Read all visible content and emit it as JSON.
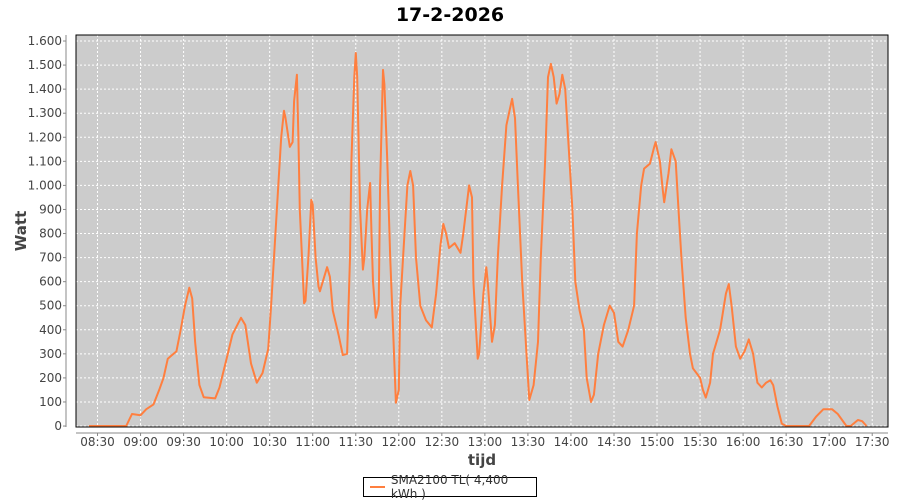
{
  "chart_data": {
    "type": "line",
    "title": "17-2-2026",
    "xlabel": "tijd",
    "ylabel": "Watt",
    "xlim": [
      "08:15",
      "17:41"
    ],
    "ylim": [
      -4,
      1625
    ],
    "grid": true,
    "legend_placement": "bottom",
    "plot_background": "#cccccc",
    "x_ticks": [
      "08:30",
      "09:00",
      "09:30",
      "10:00",
      "10:30",
      "11:00",
      "11:30",
      "12:00",
      "12:30",
      "13:00",
      "13:30",
      "14:00",
      "14:30",
      "15:00",
      "15:30",
      "16:00",
      "16:30",
      "17:00",
      "17:30"
    ],
    "y_ticks": [
      0,
      100,
      200,
      300,
      400,
      500,
      600,
      700,
      800,
      900,
      1000,
      1100,
      1200,
      1300,
      1400,
      1500,
      1600
    ],
    "y_tick_labels": [
      "0",
      "100",
      "200",
      "300",
      "400",
      "500",
      "600",
      "700",
      "800",
      "900",
      "1.000",
      "1.100",
      "1.200",
      "1.300",
      "1.400",
      "1.500",
      "1.600"
    ],
    "series": [
      {
        "name": "SMA2100 TL( 4,400 kWh )",
        "color": "#ff7f3f",
        "points": [
          [
            "08:24",
            0
          ],
          [
            "08:46",
            0
          ],
          [
            "08:50",
            0
          ],
          [
            "08:54",
            50
          ],
          [
            "09:00",
            45
          ],
          [
            "09:04",
            70
          ],
          [
            "09:09",
            90
          ],
          [
            "09:13",
            150
          ],
          [
            "09:16",
            200
          ],
          [
            "09:19",
            280
          ],
          [
            "09:22",
            295
          ],
          [
            "09:25",
            310
          ],
          [
            "09:28",
            400
          ],
          [
            "09:31",
            500
          ],
          [
            "09:34",
            575
          ],
          [
            "09:36",
            530
          ],
          [
            "09:38",
            350
          ],
          [
            "09:41",
            170
          ],
          [
            "09:44",
            120
          ],
          [
            "09:52",
            115
          ],
          [
            "09:55",
            160
          ],
          [
            "10:00",
            280
          ],
          [
            "10:04",
            380
          ],
          [
            "10:10",
            450
          ],
          [
            "10:13",
            420
          ],
          [
            "10:17",
            260
          ],
          [
            "10:21",
            180
          ],
          [
            "10:25",
            220
          ],
          [
            "10:29",
            320
          ],
          [
            "10:31",
            500
          ],
          [
            "10:33",
            700
          ],
          [
            "10:36",
            1000
          ],
          [
            "10:38",
            1200
          ],
          [
            "10:40",
            1310
          ],
          [
            "10:41",
            1280
          ],
          [
            "10:44",
            1160
          ],
          [
            "10:46",
            1180
          ],
          [
            "10:47",
            1350
          ],
          [
            "10:49",
            1460
          ],
          [
            "10:50",
            1200
          ],
          [
            "10:51",
            900
          ],
          [
            "10:54",
            510
          ],
          [
            "10:55",
            520
          ],
          [
            "10:57",
            700
          ],
          [
            "10:59",
            940
          ],
          [
            "11:00",
            920
          ],
          [
            "11:02",
            700
          ],
          [
            "11:04",
            580
          ],
          [
            "11:05",
            560
          ],
          [
            "11:10",
            660
          ],
          [
            "11:12",
            620
          ],
          [
            "11:14",
            480
          ],
          [
            "11:18",
            380
          ],
          [
            "11:21",
            295
          ],
          [
            "11:24",
            300
          ],
          [
            "11:26",
            700
          ],
          [
            "11:27",
            1100
          ],
          [
            "11:29",
            1450
          ],
          [
            "11:30",
            1550
          ],
          [
            "11:31",
            1450
          ],
          [
            "11:33",
            900
          ],
          [
            "11:35",
            650
          ],
          [
            "11:36",
            700
          ],
          [
            "11:38",
            900
          ],
          [
            "11:40",
            1010
          ],
          [
            "11:41",
            800
          ],
          [
            "11:42",
            600
          ],
          [
            "11:44",
            450
          ],
          [
            "11:46",
            500
          ],
          [
            "11:47",
            1000
          ],
          [
            "11:49",
            1480
          ],
          [
            "11:50",
            1420
          ],
          [
            "11:52",
            1100
          ],
          [
            "11:54",
            700
          ],
          [
            "11:56",
            400
          ],
          [
            "11:58",
            97
          ],
          [
            "12:00",
            150
          ],
          [
            "12:01",
            500
          ],
          [
            "12:04",
            800
          ],
          [
            "12:06",
            1000
          ],
          [
            "12:08",
            1060
          ],
          [
            "12:10",
            1000
          ],
          [
            "12:12",
            700
          ],
          [
            "12:15",
            500
          ],
          [
            "12:19",
            440
          ],
          [
            "12:23",
            410
          ],
          [
            "12:26",
            550
          ],
          [
            "12:29",
            750
          ],
          [
            "12:31",
            840
          ],
          [
            "12:33",
            800
          ],
          [
            "12:35",
            740
          ],
          [
            "12:39",
            760
          ],
          [
            "12:43",
            720
          ],
          [
            "12:45",
            800
          ],
          [
            "12:49",
            1000
          ],
          [
            "12:51",
            950
          ],
          [
            "12:52",
            600
          ],
          [
            "12:55",
            280
          ],
          [
            "12:56",
            300
          ],
          [
            "12:59",
            550
          ],
          [
            "13:01",
            660
          ],
          [
            "13:02",
            600
          ],
          [
            "13:05",
            350
          ],
          [
            "13:07",
            420
          ],
          [
            "13:09",
            700
          ],
          [
            "13:12",
            1000
          ],
          [
            "13:15",
            1250
          ],
          [
            "13:19",
            1360
          ],
          [
            "13:21",
            1280
          ],
          [
            "13:23",
            1000
          ],
          [
            "13:26",
            600
          ],
          [
            "13:29",
            300
          ],
          [
            "13:31",
            108
          ],
          [
            "13:34",
            170
          ],
          [
            "13:37",
            350
          ],
          [
            "13:39",
            700
          ],
          [
            "13:42",
            1100
          ],
          [
            "13:44",
            1450
          ],
          [
            "13:46",
            1505
          ],
          [
            "13:48",
            1450
          ],
          [
            "13:50",
            1340
          ],
          [
            "13:52",
            1380
          ],
          [
            "13:54",
            1460
          ],
          [
            "13:56",
            1400
          ],
          [
            "13:58",
            1200
          ],
          [
            "14:01",
            900
          ],
          [
            "14:03",
            600
          ],
          [
            "14:06",
            480
          ],
          [
            "14:09",
            400
          ],
          [
            "14:11",
            200
          ],
          [
            "14:14",
            100
          ],
          [
            "14:16",
            130
          ],
          [
            "14:19",
            300
          ],
          [
            "14:23",
            420
          ],
          [
            "14:27",
            500
          ],
          [
            "14:30",
            470
          ],
          [
            "14:33",
            350
          ],
          [
            "14:36",
            330
          ],
          [
            "14:40",
            400
          ],
          [
            "14:44",
            500
          ],
          [
            "14:46",
            800
          ],
          [
            "14:49",
            1000
          ],
          [
            "14:51",
            1070
          ],
          [
            "14:55",
            1090
          ],
          [
            "14:58",
            1160
          ],
          [
            "14:59",
            1180
          ],
          [
            "15:02",
            1100
          ],
          [
            "15:04",
            980
          ],
          [
            "15:05",
            930
          ],
          [
            "15:08",
            1050
          ],
          [
            "15:10",
            1150
          ],
          [
            "15:13",
            1100
          ],
          [
            "15:15",
            900
          ],
          [
            "15:17",
            700
          ],
          [
            "15:20",
            450
          ],
          [
            "15:23",
            300
          ],
          [
            "15:25",
            240
          ],
          [
            "15:30",
            200
          ],
          [
            "15:32",
            150
          ],
          [
            "15:34",
            118
          ],
          [
            "15:37",
            180
          ],
          [
            "15:39",
            300
          ],
          [
            "15:44",
            400
          ],
          [
            "15:48",
            550
          ],
          [
            "15:50",
            590
          ],
          [
            "15:52",
            500
          ],
          [
            "15:55",
            330
          ],
          [
            "15:58",
            280
          ],
          [
            "16:01",
            310
          ],
          [
            "16:04",
            360
          ],
          [
            "16:07",
            300
          ],
          [
            "16:10",
            180
          ],
          [
            "16:13",
            160
          ],
          [
            "16:16",
            180
          ],
          [
            "16:19",
            190
          ],
          [
            "16:21",
            170
          ],
          [
            "16:24",
            80
          ],
          [
            "16:27",
            10
          ],
          [
            "16:30",
            0
          ],
          [
            "16:46",
            0
          ],
          [
            "16:51",
            40
          ],
          [
            "16:56",
            70
          ],
          [
            "17:02",
            70
          ],
          [
            "17:06",
            50
          ],
          [
            "17:12",
            0
          ],
          [
            "17:15",
            0
          ],
          [
            "17:20",
            25
          ],
          [
            "17:23",
            20
          ],
          [
            "17:26",
            0
          ]
        ]
      }
    ]
  }
}
